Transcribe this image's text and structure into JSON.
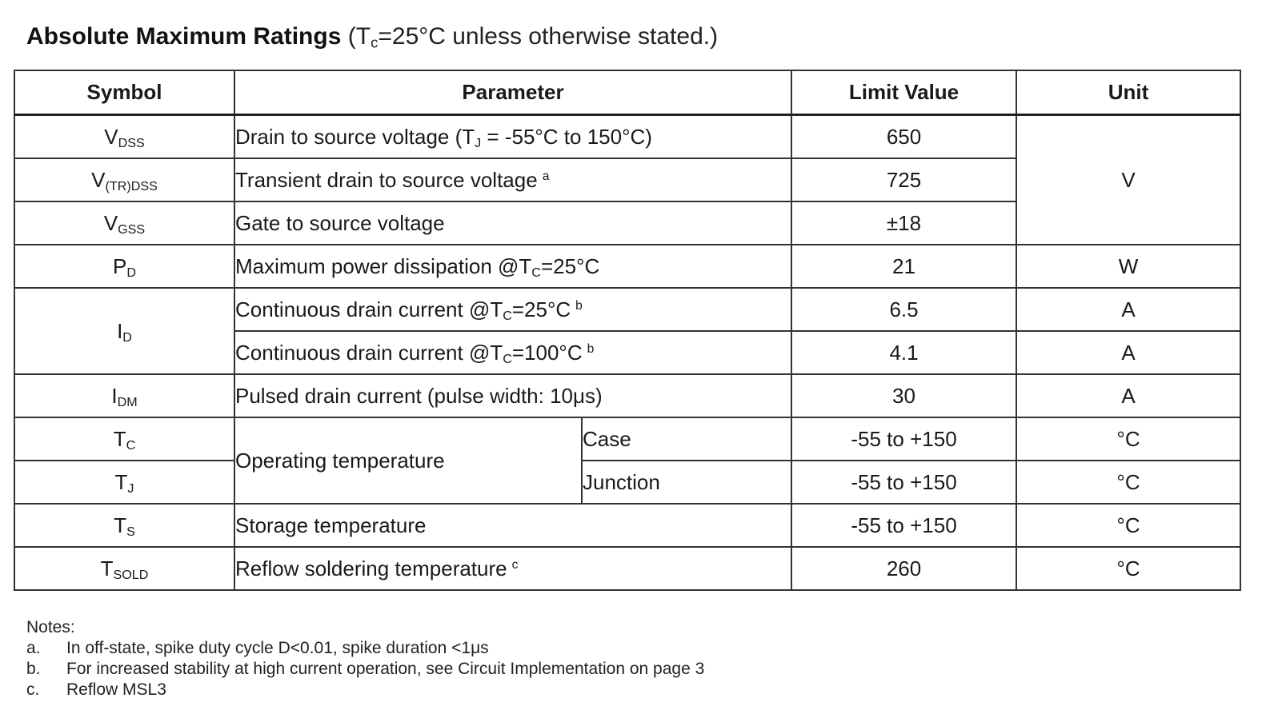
{
  "title": {
    "bold": "Absolute Maximum Ratings",
    "rest_prefix": "(T",
    "rest_sub": "c",
    "rest_suffix": "=25°C unless otherwise stated.)"
  },
  "table": {
    "headers": [
      "Symbol",
      "Parameter",
      "Limit Value",
      "Unit"
    ],
    "rows": [
      {
        "sym": "V",
        "sym_sub": "DSS",
        "param": "Drain to source voltage (T",
        "param_sub": "J",
        "param_rest": " = -55°C to 150°C)",
        "value": "650"
      },
      {
        "sym": "V",
        "sym_sub": "(TR)DSS",
        "param": "Transient drain to source voltage",
        "note": "a",
        "value": "725"
      },
      {
        "sym": "V",
        "sym_sub": "GSS",
        "param": "Gate to source voltage",
        "value": "±18"
      },
      {
        "sym": "P",
        "sym_sub": "D",
        "param": "Maximum power dissipation @T",
        "param_sub": "C",
        "param_rest": "=25°C",
        "value": "21",
        "unit": "W"
      },
      {
        "sym": "I",
        "sym_sub": "D",
        "param": "Continuous drain current @T",
        "param_sub": "C",
        "param_rest": "=25°C",
        "note": "b",
        "value": "6.5",
        "unit": "A"
      },
      {
        "param": "Continuous drain current @T",
        "param_sub": "C",
        "param_rest": "=100°C",
        "note": "b",
        "value": "4.1",
        "unit": "A"
      },
      {
        "sym": "I",
        "sym_sub": "DM",
        "param": "Pulsed drain current (pulse width: 10μs)",
        "value": "30",
        "unit": "A"
      },
      {
        "sym": "T",
        "sym_sub": "C",
        "param": "Operating temperature",
        "sub_param": "Case",
        "value": "-55 to +150",
        "unit": "°C"
      },
      {
        "sym": "T",
        "sym_sub": "J",
        "sub_param": "Junction",
        "value": "-55 to +150",
        "unit": "°C"
      },
      {
        "sym": "T",
        "sym_sub": "S",
        "param": "Storage temperature",
        "value": "-55 to +150",
        "unit": "°C"
      },
      {
        "sym": "T",
        "sym_sub": "SOLD",
        "param": "Reflow soldering temperature",
        "note": "c",
        "value": "260",
        "unit": "°C"
      }
    ],
    "merged_unit_voltage": "V"
  },
  "notes": {
    "heading": "Notes:",
    "items": [
      {
        "key": "a.",
        "text": "In off-state, spike duty cycle D<0.01, spike duration <1μs"
      },
      {
        "key": "b.",
        "text": "For increased stability at high current operation, see Circuit Implementation on page 3"
      },
      {
        "key": "c.",
        "text": "Reflow MSL3"
      }
    ]
  }
}
